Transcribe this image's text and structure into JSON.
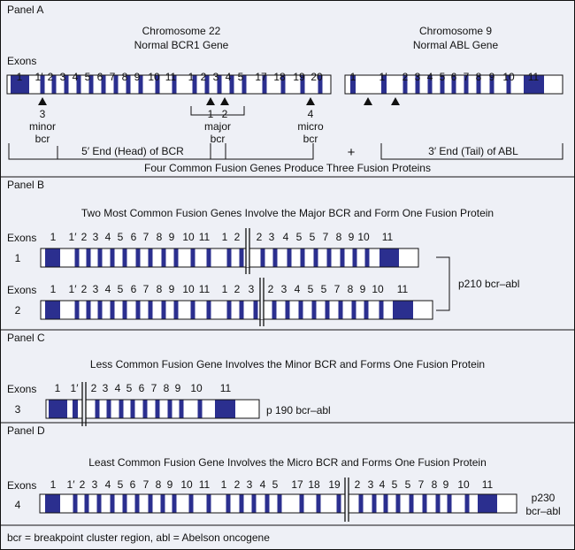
{
  "colors": {
    "exon": "#2b2f8f",
    "background": "#eef0f6",
    "line": "#111111"
  },
  "panel_a": {
    "label": "Panel A",
    "chr22_title": "Chromosome 22",
    "chr22_subtitle": "Normal BCR1 Gene",
    "chr9_title": "Chromosome 9",
    "chr9_subtitle": "Normal ABL Gene",
    "exons_label": "Exons",
    "bcr_exons": [
      "1",
      "1′",
      "2",
      "3",
      "4",
      "5",
      "6",
      "7",
      "8",
      "9",
      "10",
      "11",
      "1",
      "2",
      "3",
      "4",
      "5",
      "17",
      "18",
      "19",
      "20"
    ],
    "abl_exons": [
      "1",
      "1′",
      "2",
      "3",
      "4",
      "5",
      "6",
      "7",
      "8",
      "9",
      "10",
      "11"
    ],
    "minor": [
      "3",
      "minor",
      "bcr"
    ],
    "major_numbers": [
      "1",
      "2"
    ],
    "major": [
      "major",
      "bcr"
    ],
    "micro": [
      "4",
      "micro",
      "bcr"
    ],
    "head_label": "5′ End (Head) of BCR",
    "plus": "+",
    "tail_label": "3′ End (Tail) of ABL",
    "caption": "Four Common Fusion Genes Produce Three Fusion Proteins"
  },
  "panel_b": {
    "label": "Panel B",
    "title": "Two Most Common Fusion Genes Involve the Major BCR and Form One Fusion Protein",
    "exons_label": "Exons",
    "rows": [
      {
        "id": "1",
        "bcr_exons": [
          "1",
          "1′",
          "2",
          "3",
          "4",
          "5",
          "6",
          "7",
          "8",
          "9",
          "10",
          "11",
          "1",
          "2"
        ],
        "abl_exons": [
          "2",
          "3",
          "4",
          "5",
          "5",
          "7",
          "8",
          "9",
          "10",
          "11"
        ]
      },
      {
        "id": "2",
        "bcr_exons": [
          "1",
          "1′",
          "2",
          "3",
          "4",
          "5",
          "6",
          "7",
          "8",
          "9",
          "10",
          "11",
          "1",
          "2",
          "3"
        ],
        "abl_exons": [
          "2",
          "3",
          "4",
          "5",
          "5",
          "7",
          "8",
          "9",
          "10",
          "11"
        ]
      }
    ],
    "protein": "p210 bcr–abl"
  },
  "panel_c": {
    "label": "Panel C",
    "title": "Less Common Fusion Gene Involves the Minor BCR and Forms One Fusion Protein",
    "exons_label": "Exons",
    "row": {
      "id": "3",
      "bcr_exons": [
        "1",
        "1′"
      ],
      "abl_exons": [
        "2",
        "3",
        "4",
        "5",
        "6",
        "7",
        "8",
        "9",
        "10",
        "11"
      ]
    },
    "protein": "p 190 bcr–abl"
  },
  "panel_d": {
    "label": "Panel D",
    "title": "Least Common Fusion Gene Involves the Micro BCR and Forms One Fusion Protein",
    "exons_label": "Exons",
    "row": {
      "id": "4",
      "bcr_exons": [
        "1",
        "1′",
        "2",
        "3",
        "4",
        "5",
        "6",
        "7",
        "8",
        "9",
        "10",
        "11",
        "1",
        "2",
        "3",
        "4",
        "5",
        "17",
        "18",
        "19"
      ],
      "abl_exons": [
        "2",
        "3",
        "4",
        "5",
        "5",
        "7",
        "8",
        "9",
        "10",
        "11"
      ]
    },
    "protein_line1": "p230",
    "protein_line2": "bcr–abl"
  },
  "footer": "bcr = breakpoint cluster region, abl = Abelson oncogene"
}
